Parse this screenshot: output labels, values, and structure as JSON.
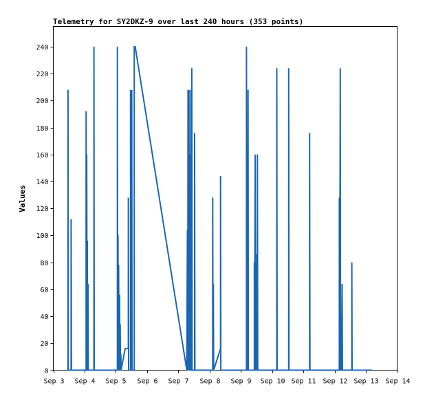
{
  "chart_data": {
    "type": "line",
    "title": "Telemetry for SY2DKZ-9 over last 240 hours (353 points)",
    "xlabel": "",
    "ylabel": "Values",
    "ylim": [
      0,
      255
    ],
    "yticks": [
      0,
      20,
      40,
      60,
      80,
      100,
      120,
      140,
      160,
      180,
      200,
      220,
      240
    ],
    "xlim_days": [
      3,
      14
    ],
    "xtick_labels": [
      "Sep 3",
      "Sep 4",
      "Sep 5",
      "Sep 6",
      "Sep 7",
      "Sep 8",
      "Sep 9",
      "Sep 10",
      "Sep 11",
      "Sep 12",
      "Sep 13",
      "Sep 14"
    ],
    "grid": false,
    "line_color": "#1a66b3",
    "series": [
      {
        "points": [
          [
            3.47,
            0
          ],
          [
            3.47,
            208
          ],
          [
            3.48,
            0
          ],
          [
            3.57,
            0
          ],
          [
            3.57,
            112
          ],
          [
            3.58,
            0
          ],
          [
            4.05,
            0
          ],
          [
            4.05,
            192
          ],
          [
            4.06,
            0
          ],
          [
            4.07,
            0
          ],
          [
            4.07,
            160
          ],
          [
            4.08,
            32
          ],
          [
            4.09,
            96
          ],
          [
            4.1,
            0
          ],
          [
            4.11,
            0
          ],
          [
            4.11,
            64
          ],
          [
            4.12,
            0
          ],
          [
            4.3,
            0
          ],
          [
            4.3,
            240
          ],
          [
            4.31,
            0
          ],
          [
            5.05,
            0
          ],
          [
            5.05,
            240
          ],
          [
            5.06,
            0
          ],
          [
            5.07,
            100
          ],
          [
            5.08,
            0
          ],
          [
            5.09,
            78
          ],
          [
            5.1,
            0
          ],
          [
            5.12,
            56
          ],
          [
            5.13,
            0
          ],
          [
            5.14,
            34
          ],
          [
            5.15,
            0
          ],
          [
            5.16,
            12
          ],
          [
            5.17,
            0
          ],
          [
            5.3,
            16
          ],
          [
            5.4,
            16
          ],
          [
            5.4,
            128
          ],
          [
            5.41,
            0
          ],
          [
            5.47,
            0
          ],
          [
            5.47,
            208
          ],
          [
            5.48,
            0
          ],
          [
            5.51,
            0
          ],
          [
            5.51,
            208
          ],
          [
            5.52,
            0
          ],
          [
            5.59,
            0
          ],
          [
            5.59,
            240
          ],
          [
            5.62,
            240
          ],
          [
            7.27,
            0
          ],
          [
            7.29,
            104
          ],
          [
            7.3,
            0
          ],
          [
            7.31,
            208
          ],
          [
            7.32,
            0
          ],
          [
            7.34,
            208
          ],
          [
            7.35,
            0
          ],
          [
            7.37,
            160
          ],
          [
            7.38,
            0
          ],
          [
            7.4,
            208
          ],
          [
            7.41,
            0
          ],
          [
            7.43,
            224
          ],
          [
            7.44,
            0
          ],
          [
            7.52,
            0
          ],
          [
            7.52,
            176
          ],
          [
            7.53,
            0
          ],
          [
            8.1,
            0
          ],
          [
            8.1,
            128
          ],
          [
            8.11,
            0
          ],
          [
            8.12,
            64
          ],
          [
            8.13,
            0
          ],
          [
            8.35,
            16
          ],
          [
            8.35,
            144
          ],
          [
            8.36,
            0
          ],
          [
            9.18,
            0
          ],
          [
            9.18,
            240
          ],
          [
            9.19,
            0
          ],
          [
            9.21,
            160
          ],
          [
            9.22,
            0
          ],
          [
            9.23,
            208
          ],
          [
            9.24,
            0
          ],
          [
            9.43,
            0
          ],
          [
            9.43,
            80
          ],
          [
            9.44,
            16
          ],
          [
            9.46,
            160
          ],
          [
            9.47,
            0
          ],
          [
            9.48,
            64
          ],
          [
            9.49,
            0
          ],
          [
            9.51,
            86
          ],
          [
            9.52,
            0
          ],
          [
            9.53,
            160
          ],
          [
            9.54,
            0
          ],
          [
            10.15,
            0
          ],
          [
            10.15,
            224
          ],
          [
            10.16,
            0
          ],
          [
            10.53,
            0
          ],
          [
            10.53,
            224
          ],
          [
            10.54,
            0
          ],
          [
            11.2,
            0
          ],
          [
            11.2,
            176
          ],
          [
            11.21,
            0
          ],
          [
            12.15,
            0
          ],
          [
            12.15,
            128
          ],
          [
            12.16,
            0
          ],
          [
            12.18,
            224
          ],
          [
            12.19,
            0
          ],
          [
            12.21,
            26
          ],
          [
            12.22,
            0
          ],
          [
            12.24,
            64
          ],
          [
            12.25,
            0
          ],
          [
            12.55,
            0
          ],
          [
            12.55,
            80
          ],
          [
            12.56,
            0
          ],
          [
            13.2,
            0
          ]
        ]
      }
    ]
  }
}
